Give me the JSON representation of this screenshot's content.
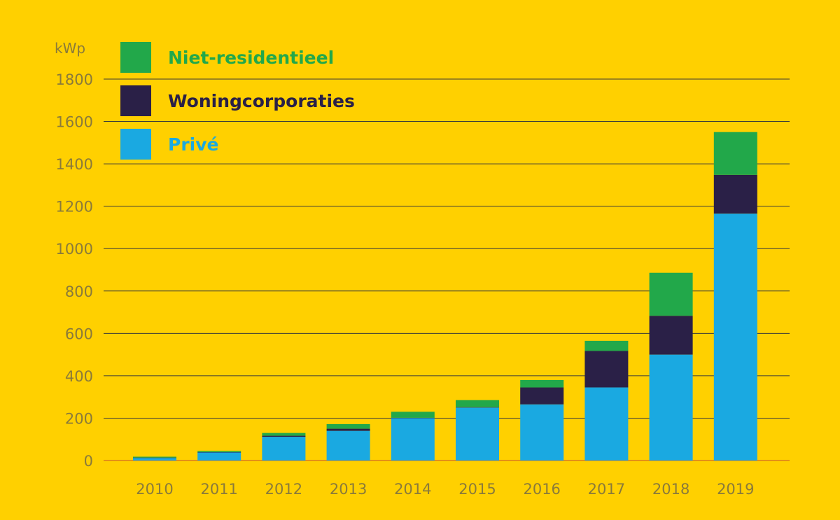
{
  "chart_data": {
    "type": "bar",
    "stacked": true,
    "ylabel": "kWp",
    "ylim": [
      0,
      1800
    ],
    "yticks": [
      0,
      200,
      400,
      600,
      800,
      1000,
      1200,
      1400,
      1600,
      1800
    ],
    "categories": [
      "2010",
      "2011",
      "2012",
      "2013",
      "2014",
      "2015",
      "2016",
      "2017",
      "2018",
      "2019"
    ],
    "series": [
      {
        "name": "Privé",
        "color": "#1AA9E1",
        "values": [
          12,
          38,
          112,
          140,
          200,
          250,
          265,
          345,
          500,
          1165
        ]
      },
      {
        "name": "Woningcorporaties",
        "color": "#2A2047",
        "values": [
          2,
          2,
          5,
          10,
          2,
          2,
          80,
          172,
          183,
          183
        ]
      },
      {
        "name": "Niet-residentieel",
        "color": "#22A84A",
        "values": [
          4,
          5,
          13,
          22,
          28,
          33,
          35,
          48,
          203,
          202
        ]
      }
    ],
    "legend": {
      "placement": "top-left",
      "order": [
        "Niet-residentieel",
        "Woningcorporaties",
        "Privé"
      ]
    },
    "grid": true
  }
}
